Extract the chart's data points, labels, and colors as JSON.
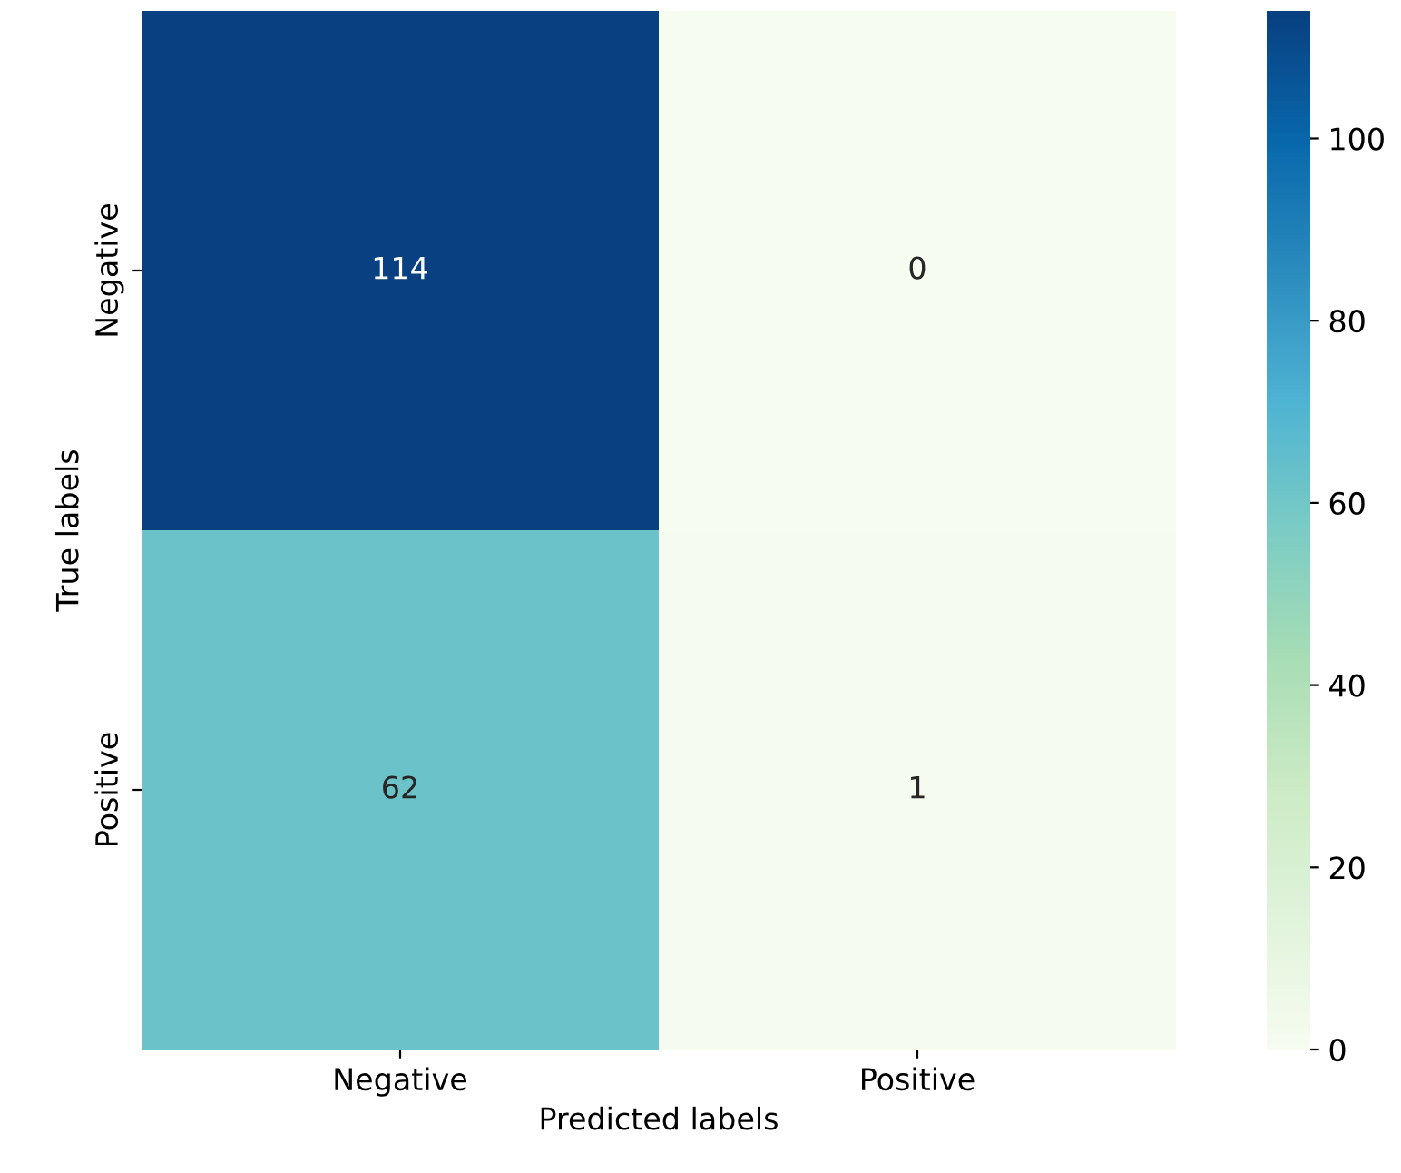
{
  "chart_data": {
    "type": "heatmap",
    "xlabel": "Predicted labels",
    "ylabel": "True labels",
    "categories": [
      "Negative",
      "Positive"
    ],
    "y_categories": [
      "Negative",
      "Positive"
    ],
    "cells": [
      [
        114,
        0
      ],
      [
        62,
        1
      ]
    ],
    "data_labels": true,
    "colors": [
      "#f7fcf0",
      "#e0f3db",
      "#ccebc5",
      "#a8ddb5",
      "#7bccc4",
      "#4eb3d3",
      "#2b8cbe",
      "#0868ac",
      "#084081"
    ],
    "clim": [
      0,
      114
    ],
    "cticks": [
      0,
      20,
      40,
      60,
      80,
      100
    ]
  }
}
